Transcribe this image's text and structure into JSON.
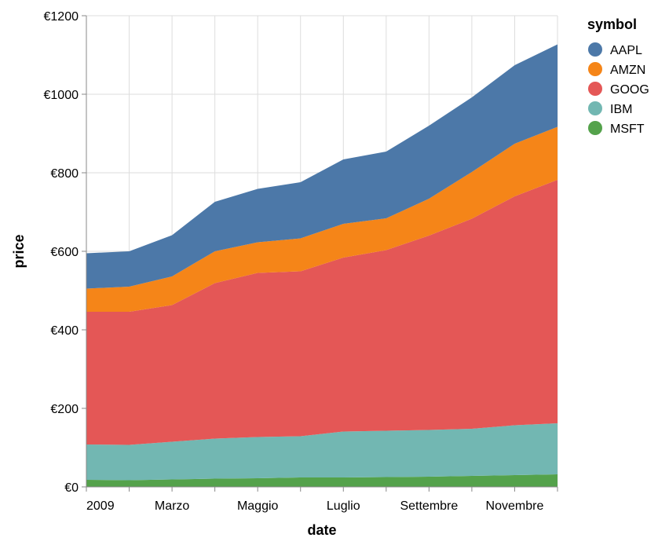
{
  "chart_data": {
    "type": "area",
    "stacked": true,
    "xlabel": "date",
    "ylabel": "price",
    "ylim": [
      0,
      1200
    ],
    "y_ticks": [
      "€0",
      "€200",
      "€400",
      "€600",
      "€800",
      "€1000",
      "€1200"
    ],
    "y_tick_values": [
      0,
      200,
      400,
      600,
      800,
      1000,
      1200
    ],
    "x_tick_labels": [
      "2009",
      "Marzo",
      "Maggio",
      "Luglio",
      "Settembre",
      "Novembre"
    ],
    "x": [
      "2009-01",
      "2009-02",
      "2009-03",
      "2009-04",
      "2009-05",
      "2009-06",
      "2009-07",
      "2009-08",
      "2009-09",
      "2009-10",
      "2009-11",
      "2009-12"
    ],
    "grid": true,
    "legend": {
      "title": "symbol",
      "placement": "top-right"
    },
    "series": [
      {
        "name": "MSFT",
        "color": "#54a24b",
        "values": [
          18,
          17,
          19,
          21,
          22,
          24,
          24,
          25,
          26,
          28,
          30,
          32
        ]
      },
      {
        "name": "IBM",
        "color": "#72b7b2",
        "values": [
          90,
          90,
          96,
          102,
          105,
          105,
          117,
          118,
          119,
          120,
          127,
          130
        ]
      },
      {
        "name": "GOOG",
        "color": "#e45756",
        "values": [
          338,
          339,
          348,
          396,
          418,
          420,
          443,
          460,
          495,
          535,
          583,
          620
        ]
      },
      {
        "name": "AMZN",
        "color": "#f58518",
        "values": [
          59,
          64,
          73,
          81,
          78,
          84,
          86,
          81,
          94,
          119,
          134,
          135
        ]
      },
      {
        "name": "AAPL",
        "color": "#4c78a8",
        "values": [
          90,
          90,
          105,
          126,
          136,
          143,
          164,
          170,
          186,
          190,
          200,
          210
        ]
      }
    ],
    "legend_order": [
      "AAPL",
      "AMZN",
      "GOOG",
      "IBM",
      "MSFT"
    ]
  }
}
